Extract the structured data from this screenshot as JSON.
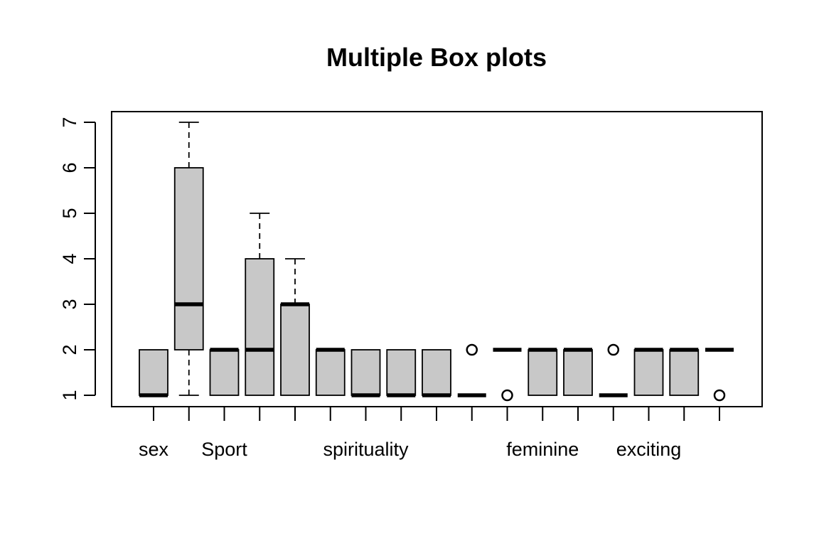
{
  "chart_data": {
    "type": "box",
    "title": "Multiple Box plots",
    "xlabel": "",
    "ylabel": "",
    "ylim": [
      0.75,
      7.25
    ],
    "yticks": [
      1,
      2,
      3,
      4,
      5,
      6,
      7
    ],
    "grid": false,
    "legend": "none",
    "box_fill": "#c8c8c8",
    "x_labels_shown": [
      {
        "position": 1,
        "label": "sex"
      },
      {
        "position": 3,
        "label": "Sport"
      },
      {
        "position": 7,
        "label": "spirituality"
      },
      {
        "position": 12,
        "label": "feminine"
      },
      {
        "position": 15,
        "label": "exciting"
      }
    ],
    "boxes": [
      {
        "position": 1,
        "whisker_low": 1,
        "q1": 1,
        "median": 1,
        "q3": 2,
        "whisker_high": 2,
        "outliers": []
      },
      {
        "position": 2,
        "whisker_low": 1,
        "q1": 2,
        "median": 3,
        "q3": 6,
        "whisker_high": 7,
        "outliers": []
      },
      {
        "position": 3,
        "whisker_low": 1,
        "q1": 1,
        "median": 2,
        "q3": 2,
        "whisker_high": 2,
        "outliers": []
      },
      {
        "position": 4,
        "whisker_low": 1,
        "q1": 1,
        "median": 2,
        "q3": 4,
        "whisker_high": 5,
        "outliers": []
      },
      {
        "position": 5,
        "whisker_low": 1,
        "q1": 1,
        "median": 3,
        "q3": 3,
        "whisker_high": 4,
        "outliers": []
      },
      {
        "position": 6,
        "whisker_low": 1,
        "q1": 1,
        "median": 2,
        "q3": 2,
        "whisker_high": 2,
        "outliers": []
      },
      {
        "position": 7,
        "whisker_low": 1,
        "q1": 1,
        "median": 1,
        "q3": 2,
        "whisker_high": 2,
        "outliers": []
      },
      {
        "position": 8,
        "whisker_low": 1,
        "q1": 1,
        "median": 1,
        "q3": 2,
        "whisker_high": 2,
        "outliers": []
      },
      {
        "position": 9,
        "whisker_low": 1,
        "q1": 1,
        "median": 1,
        "q3": 2,
        "whisker_high": 2,
        "outliers": []
      },
      {
        "position": 10,
        "whisker_low": 1,
        "q1": 1,
        "median": 1,
        "q3": 1,
        "whisker_high": 1,
        "outliers": [
          2
        ]
      },
      {
        "position": 11,
        "whisker_low": 2,
        "q1": 2,
        "median": 2,
        "q3": 2,
        "whisker_high": 2,
        "outliers": [
          1
        ]
      },
      {
        "position": 12,
        "whisker_low": 1,
        "q1": 1,
        "median": 2,
        "q3": 2,
        "whisker_high": 2,
        "outliers": []
      },
      {
        "position": 13,
        "whisker_low": 1,
        "q1": 1,
        "median": 2,
        "q3": 2,
        "whisker_high": 2,
        "outliers": []
      },
      {
        "position": 14,
        "whisker_low": 1,
        "q1": 1,
        "median": 1,
        "q3": 1,
        "whisker_high": 1,
        "outliers": [
          2
        ]
      },
      {
        "position": 15,
        "whisker_low": 1,
        "q1": 1,
        "median": 2,
        "q3": 2,
        "whisker_high": 2,
        "outliers": []
      },
      {
        "position": 16,
        "whisker_low": 1,
        "q1": 1,
        "median": 2,
        "q3": 2,
        "whisker_high": 2,
        "outliers": []
      },
      {
        "position": 17,
        "whisker_low": 2,
        "q1": 2,
        "median": 2,
        "q3": 2,
        "whisker_high": 2,
        "outliers": [
          1
        ]
      }
    ]
  }
}
